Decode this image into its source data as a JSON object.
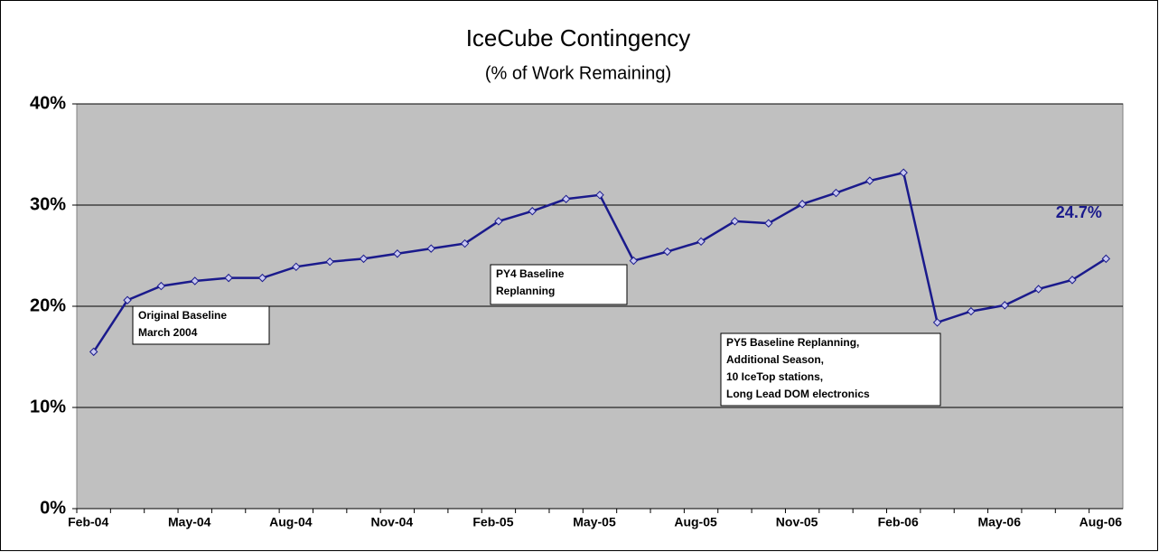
{
  "chart_data": {
    "type": "line",
    "title": "IceCube Contingency",
    "subtitle": "(% of Work Remaining)",
    "categories": [
      "Feb-04",
      null,
      null,
      "May-04",
      null,
      null,
      "Aug-04",
      null,
      null,
      "Nov-04",
      null,
      null,
      "Feb-05",
      null,
      null,
      "May-05",
      null,
      null,
      "Aug-05",
      null,
      null,
      "Nov-05",
      null,
      null,
      "Feb-06",
      null,
      null,
      "May-06",
      null,
      null,
      "Aug-06"
    ],
    "series": [
      {
        "name": "Contingency",
        "color": "#1a1a8c",
        "values": [
          15.5,
          20.6,
          22.0,
          22.5,
          22.8,
          22.8,
          23.9,
          24.4,
          24.7,
          25.2,
          25.7,
          26.2,
          28.4,
          29.4,
          30.6,
          31.0,
          24.5,
          25.4,
          26.4,
          28.4,
          28.2,
          30.1,
          31.2,
          32.4,
          33.2,
          18.4,
          19.5,
          20.1,
          21.7,
          22.6,
          24.7
        ],
        "value_labels": [
          null,
          null,
          null,
          null,
          null,
          null,
          null,
          null,
          null,
          null,
          null,
          null,
          null,
          null,
          null,
          null,
          null,
          null,
          null,
          null,
          null,
          null,
          null,
          null,
          null,
          null,
          null,
          null,
          null,
          null,
          "24.7%"
        ]
      }
    ],
    "ylim": [
      0,
      40
    ],
    "yticks": [
      {
        "value": 0,
        "label": "0%"
      },
      {
        "value": 10,
        "label": "10%"
      },
      {
        "value": 20,
        "label": "20%"
      },
      {
        "value": 30,
        "label": "30%"
      },
      {
        "value": 40,
        "label": "40%"
      }
    ],
    "grid": true,
    "plot_background": "#c0c0c0",
    "annotations": [
      {
        "lines": [
          "Original Baseline",
          "March 2004"
        ]
      },
      {
        "lines": [
          "PY4 Baseline",
          "Replanning"
        ]
      },
      {
        "lines": [
          "PY5 Baseline Replanning,",
          "Additional Season,",
          "10 IceTop stations,",
          "Long Lead DOM  electronics"
        ]
      }
    ]
  }
}
